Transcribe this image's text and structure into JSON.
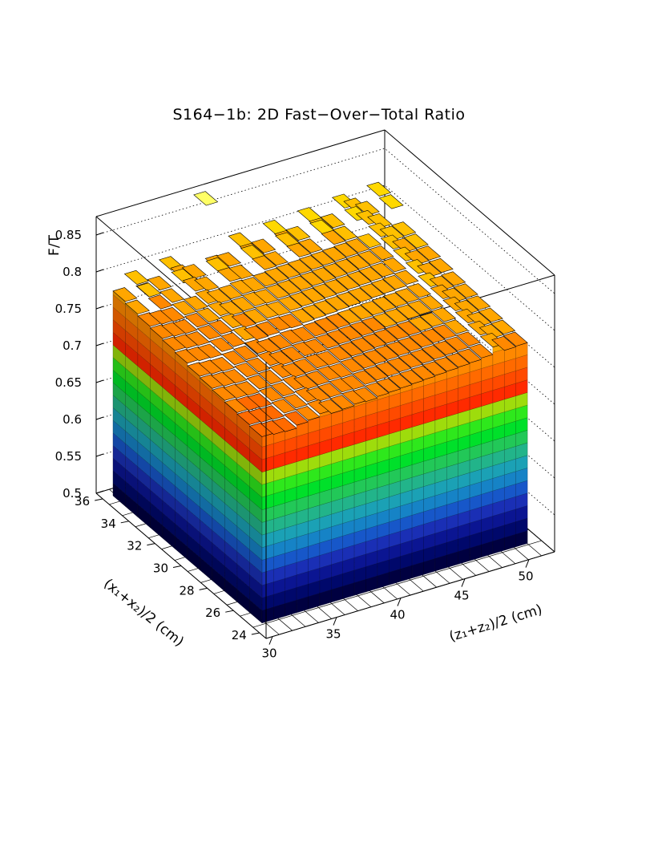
{
  "chart_data": {
    "type": "lego",
    "title": "S164−1b: 2D Fast−Over−Total Ratio",
    "xlabel": "(z₁+z₂)/2 (cm)",
    "ylabel": "(x₁+x₂)/2 (cm)",
    "zlabel": "F/T",
    "xlim": [
      29.5,
      52
    ],
    "ylim": [
      23.5,
      36.5
    ],
    "zlim": [
      0.5,
      0.875
    ],
    "xticks": [
      "30",
      "35",
      "40",
      "45",
      "50"
    ],
    "yticks": [
      "24",
      "26",
      "28",
      "30",
      "32",
      "34",
      "36"
    ],
    "zticks": [
      "0.5",
      "0.55",
      "0.6",
      "0.65",
      "0.7",
      "0.75",
      "0.8",
      "0.85"
    ],
    "z_front_row_values": [
      0.745,
      0.742,
      0.74,
      0.748,
      0.752,
      0.76,
      0.752,
      0.754,
      0.758,
      0.756,
      0.76,
      0.762,
      0.764,
      0.766,
      0.768,
      0.77,
      0.772,
      0.774,
      0.776,
      0.78,
      0.8,
      0.782,
      0.784
    ],
    "z_left_column_values": [
      0.76,
      0.762,
      0.764,
      0.766,
      0.768,
      0.77,
      0.775,
      0.778,
      0.78,
      0.782,
      0.785,
      0.788
    ],
    "z_back_row_peak": 0.875,
    "palette": [
      "#000040",
      "#00086b",
      "#0b1592",
      "#1a2fb5",
      "#1757c9",
      "#1683c6",
      "#1ba1b5",
      "#22b48a",
      "#22c858",
      "#00e02a",
      "#2ee81c",
      "#9edc0c",
      "#ff2a00",
      "#ff4a00",
      "#ff6a00",
      "#ff8800",
      "#ffa600",
      "#ffc000",
      "#ffd800",
      "#ffee00",
      "#ffff4d",
      "#ffffb3"
    ],
    "grid": true
  }
}
